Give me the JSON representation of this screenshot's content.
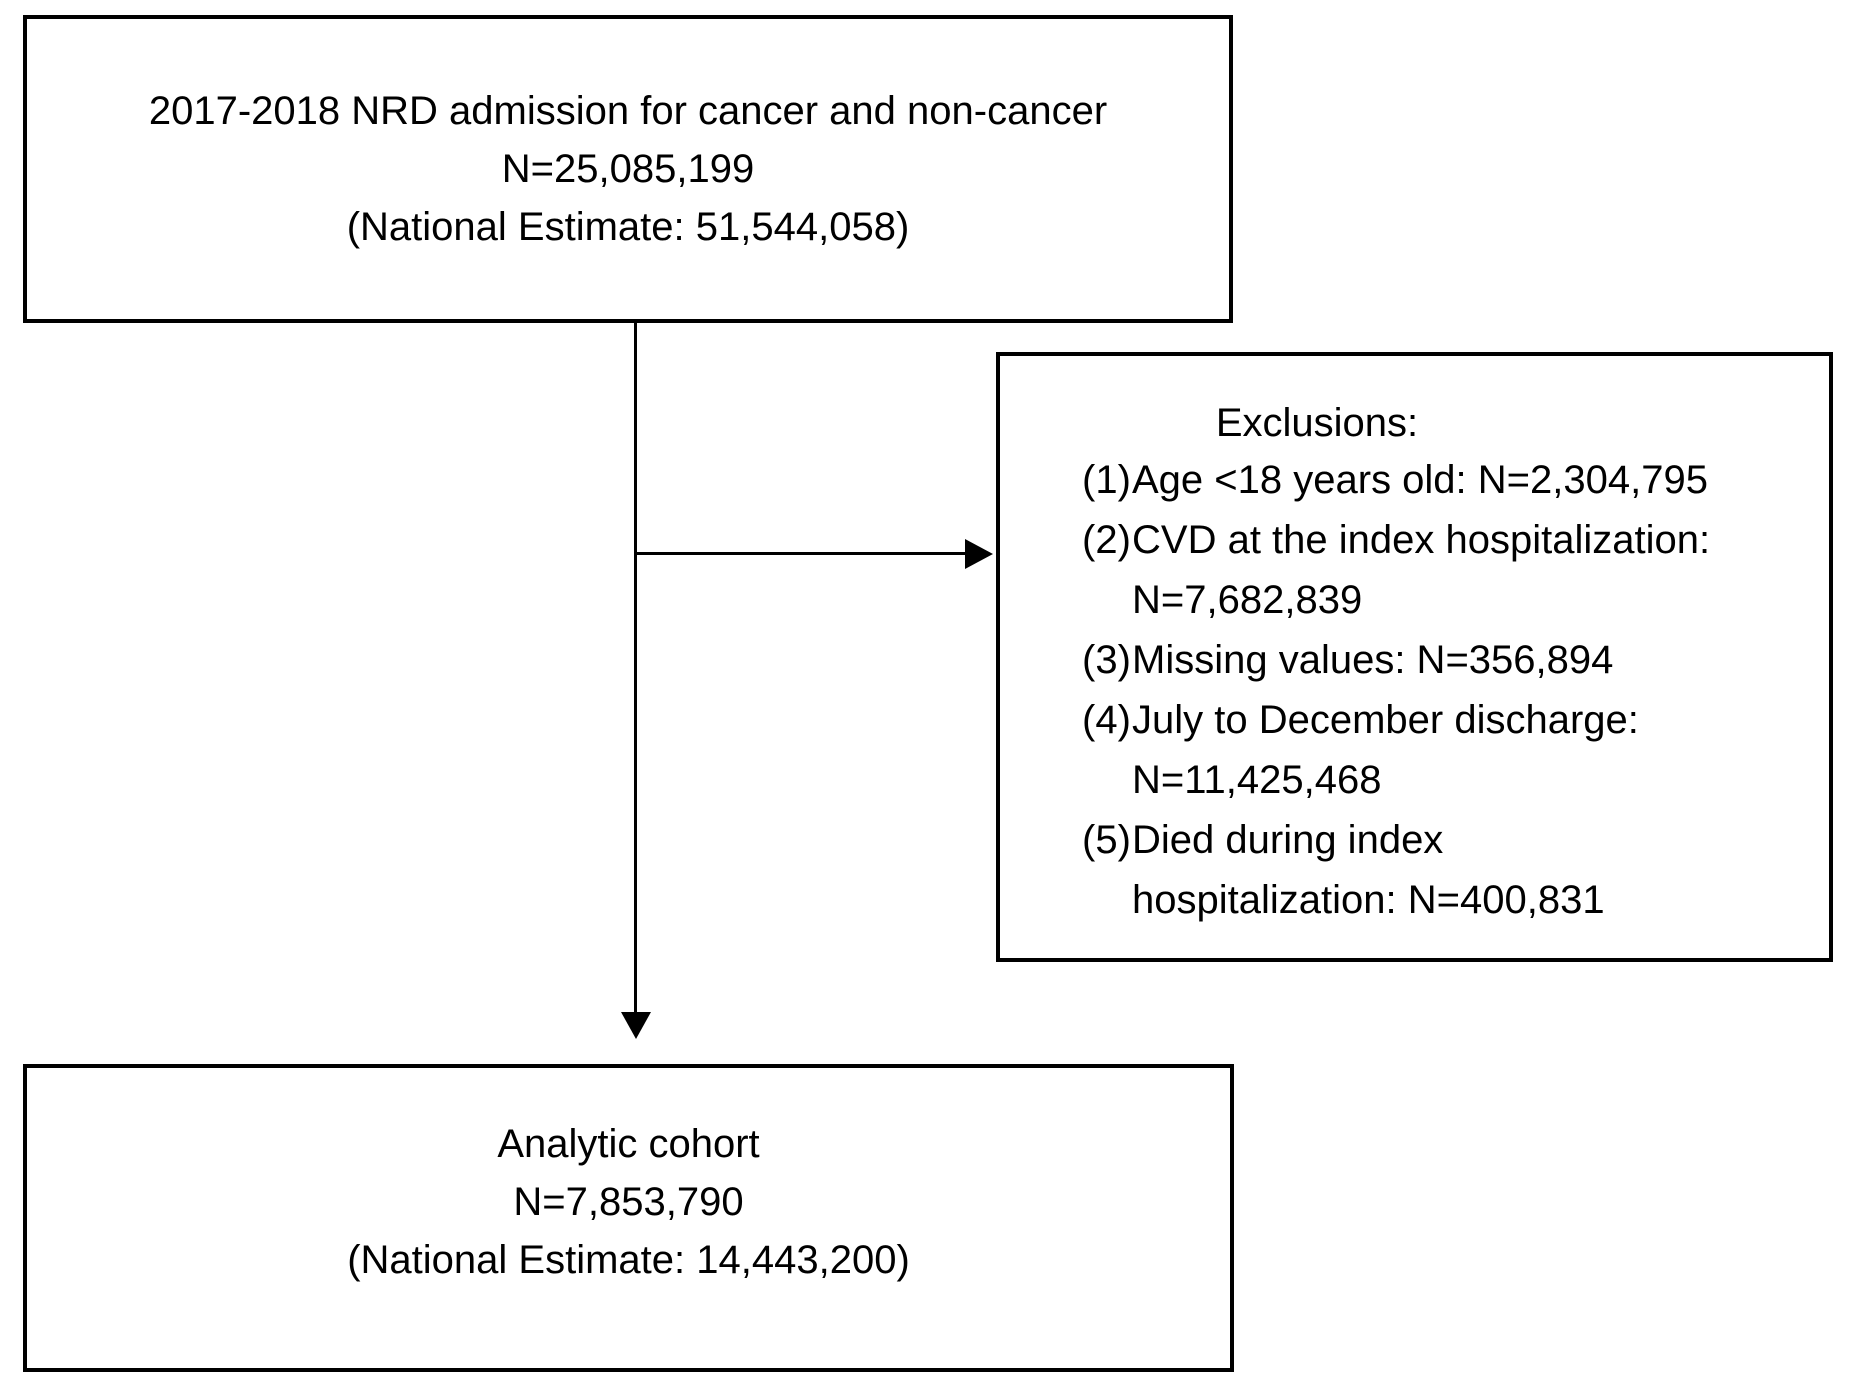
{
  "top_box": {
    "line1": "2017-2018 NRD admission for cancer and non-cancer",
    "line2": "N=25,085,199",
    "line3": "(National Estimate: 51,544,058)"
  },
  "exclusions": {
    "title": "Exclusions:",
    "items": [
      {
        "num": "(1)",
        "lines": [
          "Age <18 years old: N=2,304,795"
        ]
      },
      {
        "num": "(2)",
        "lines": [
          "CVD at the index hospitalization:",
          "N=7,682,839"
        ]
      },
      {
        "num": "(3)",
        "lines": [
          "Missing values: N=356,894"
        ]
      },
      {
        "num": "(4)",
        "lines": [
          "July to December discharge:",
          "N=11,425,468"
        ]
      },
      {
        "num": "(5)",
        "lines": [
          "Died during index",
          "hospitalization: N=400,831"
        ]
      }
    ]
  },
  "bottom_box": {
    "line1": "Analytic cohort",
    "line2": "N=7,853,790",
    "line3": "(National Estimate: 14,443,200)"
  },
  "colors": {
    "border": "#000000",
    "background": "#ffffff",
    "text": "#000000"
  }
}
